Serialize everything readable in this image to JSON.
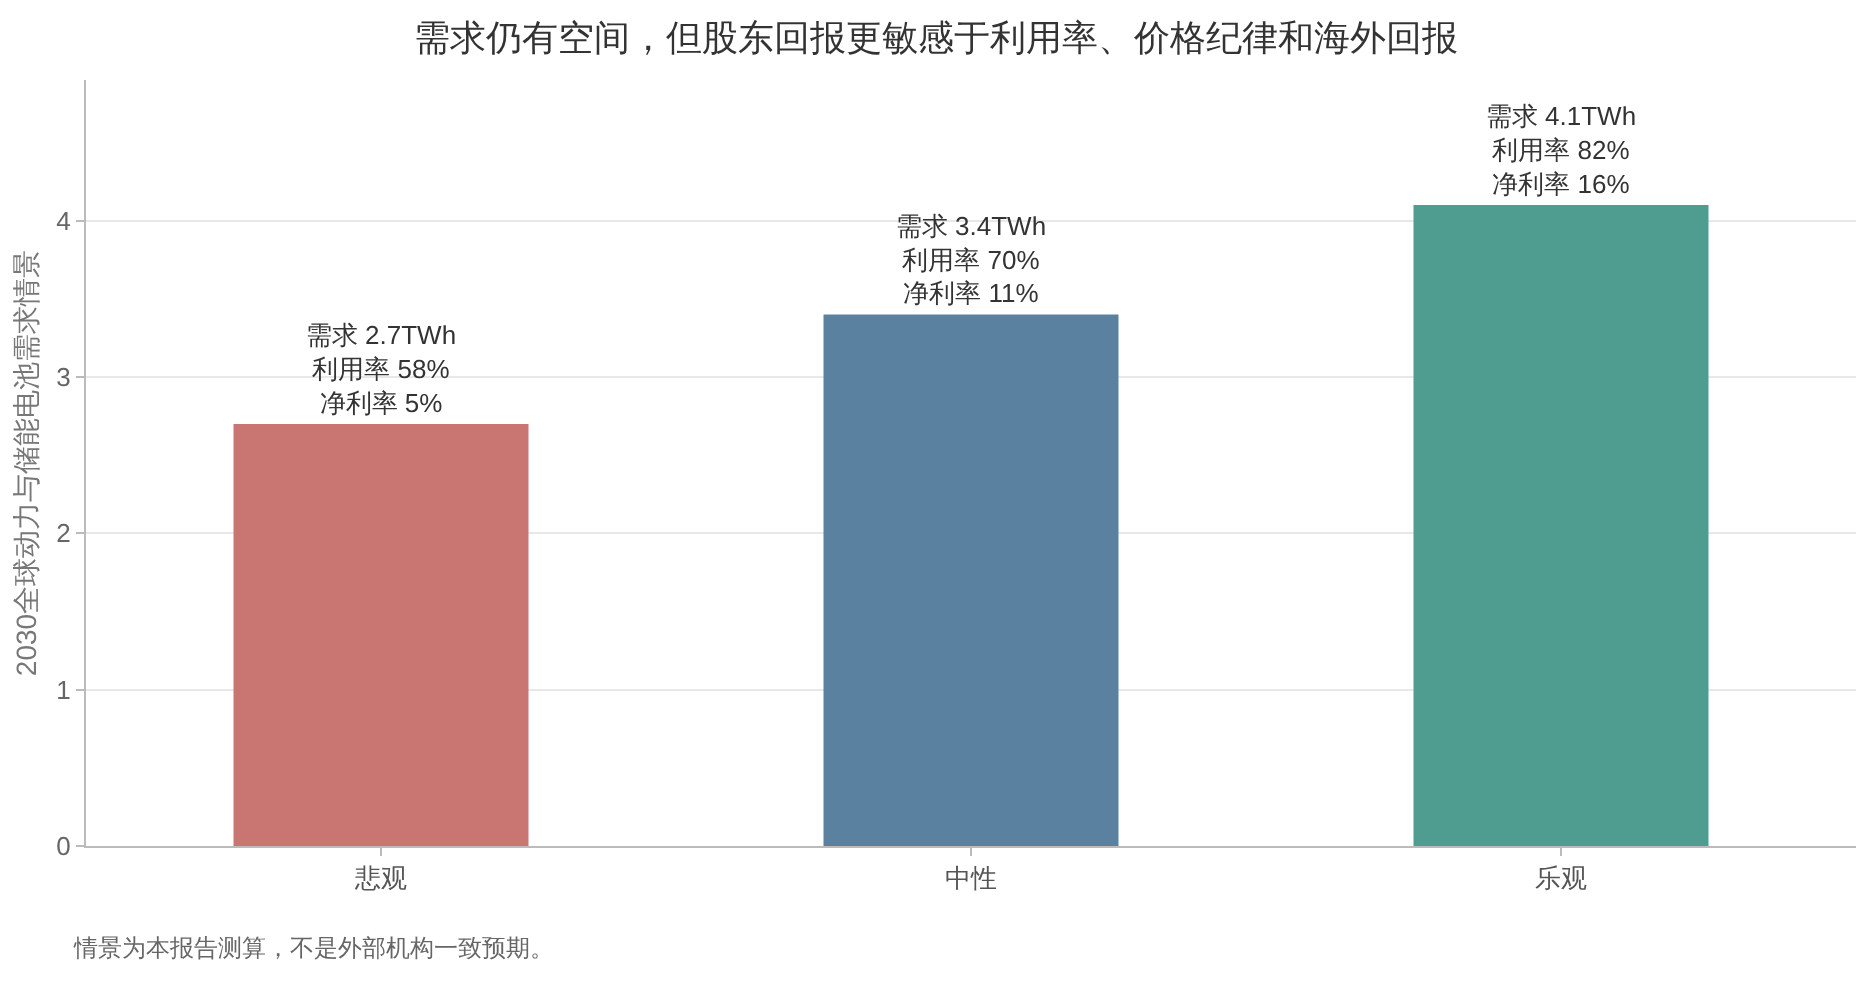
{
  "chart_data": {
    "type": "bar",
    "title": "需求仍有空间，但股东回报更敏感于利用率、价格纪律和海外回报",
    "ylabel": "2030全球动力与储能电池需求情景",
    "categories": [
      "悲观",
      "中性",
      "乐观"
    ],
    "values": [
      2.7,
      3.4,
      4.1
    ],
    "colors": [
      "#c97572",
      "#5a82a0",
      "#4e9d90"
    ],
    "value_labels": [
      "需求 2.7TWh\n利用率 58%\n净利率 5%",
      "需求 3.4TWh\n利用率 70%\n净利率 11%",
      "需求 4.1TWh\n利用率 82%\n净利率 16%"
    ],
    "ylim": [
      0,
      4.9
    ],
    "yticks": [
      0,
      1,
      2,
      3,
      4
    ],
    "grid": "y",
    "annotations": [
      "情景为本报告测算，不是外部机构一致预期。"
    ]
  }
}
